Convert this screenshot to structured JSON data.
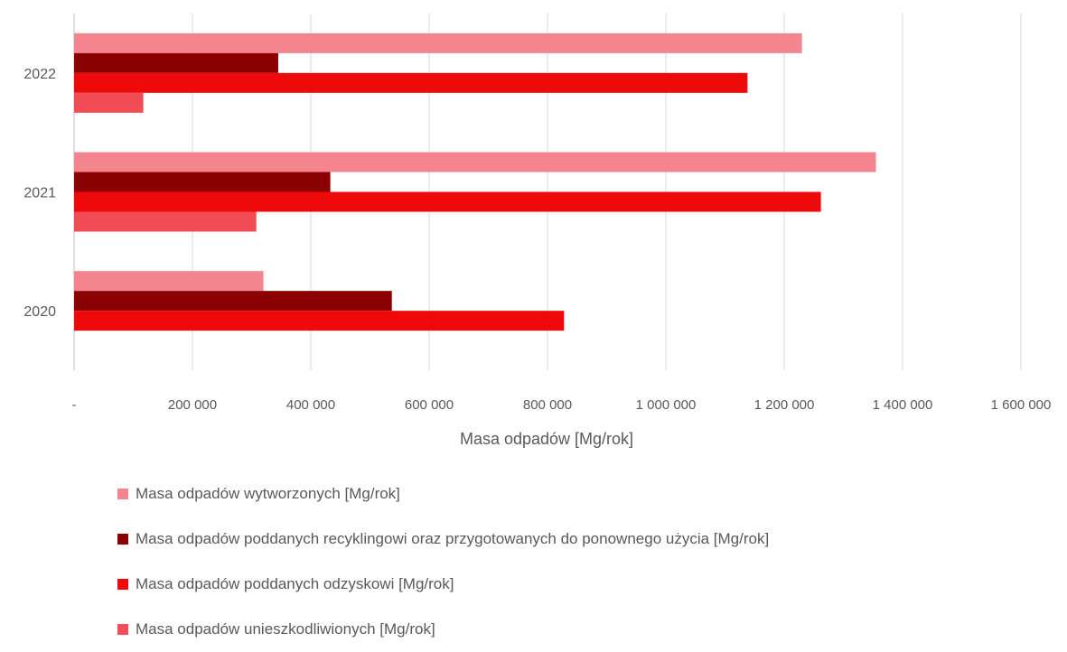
{
  "chart_data": {
    "type": "bar",
    "orientation": "horizontal",
    "categories": [
      "2020",
      "2021",
      "2022"
    ],
    "series": [
      {
        "name": "Masa odpadów wytworzonych [Mg/rok]",
        "color": "#f4858f",
        "values": [
          320000,
          1355000,
          1230000
        ]
      },
      {
        "name": "Masa odpadów poddanych recyklingowi oraz przygotowanych do ponownego użycia [Mg/rok]",
        "color": "#8b0000",
        "values": [
          537000,
          433000,
          345000
        ]
      },
      {
        "name": "Masa odpadów poddanych odzyskowi [Mg/rok]",
        "color": "#ee0a0a",
        "values": [
          828000,
          1262000,
          1138000
        ]
      },
      {
        "name": "Masa odpadów unieszkodliwionych [Mg/rok]",
        "color": "#f24c56",
        "values": [
          0,
          308000,
          117000
        ]
      }
    ],
    "xlabel": "Masa odpadów [Mg/rok]",
    "ylabel": "",
    "xlim": [
      0,
      1600000
    ],
    "xticks": [
      0,
      200000,
      400000,
      600000,
      800000,
      1000000,
      1200000,
      1400000,
      1600000
    ],
    "xtick_labels": [
      "-",
      "200 000",
      "400 000",
      "600 000",
      "800 000",
      "1 000 000",
      "1 200 000",
      "1 400 000",
      "1 600 000"
    ],
    "grid": "vertical",
    "legend_position": "bottom"
  }
}
